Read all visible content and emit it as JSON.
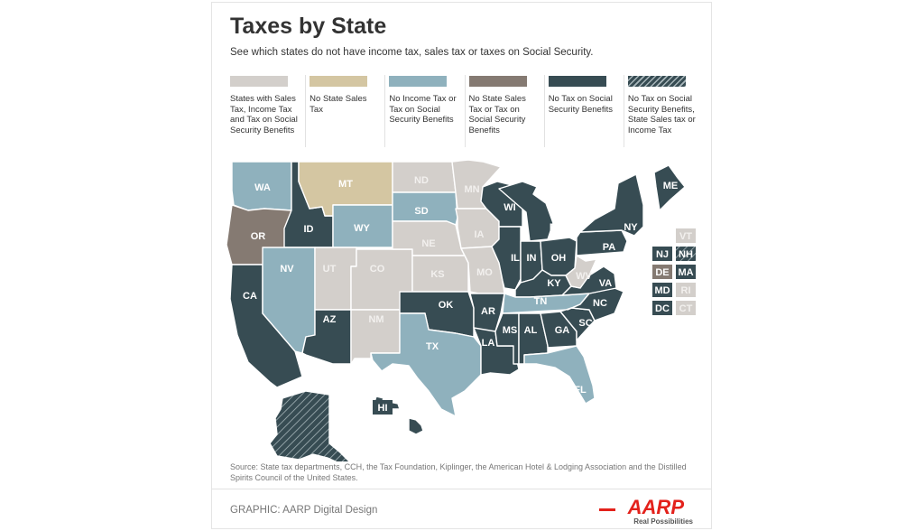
{
  "header": {
    "title": "Taxes by State",
    "subtitle": "See which states do not have income tax, sales tax or taxes on Social Security."
  },
  "colors": {
    "all_taxes": "#d3cfcb",
    "no_sales": "#d4c6a2",
    "no_income": "#8fb1bd",
    "no_sales_or_ss": "#857a72",
    "no_ss": "#374c53",
    "hatched": "#374c53",
    "aarp_red": "#e3211b"
  },
  "legend": [
    {
      "key": "all_taxes",
      "label": "States with Sales Tax, Income Tax and Tax on Social Security Benefits"
    },
    {
      "key": "no_sales",
      "label": "No State Sales Tax"
    },
    {
      "key": "no_income",
      "label": "No Income Tax or Tax on Social Security Benefits"
    },
    {
      "key": "no_sales_or_ss",
      "label": "No State Sales Tax or Tax on Social Security Benefits"
    },
    {
      "key": "no_ss",
      "label": "No Tax on Social Security Benefits"
    },
    {
      "key": "hatched",
      "label": "No Tax on Social Security Benefits, State Sales tax or Income Tax"
    }
  ],
  "states": {
    "WA": "no_income",
    "OR": "no_sales_or_ss",
    "CA": "no_ss",
    "ID": "no_ss",
    "NV": "no_income",
    "MT": "no_sales",
    "WY": "no_income",
    "UT": "all_taxes",
    "AZ": "no_ss",
    "CO": "all_taxes",
    "NM": "all_taxes",
    "ND": "all_taxes",
    "SD": "no_income",
    "NE": "all_taxes",
    "KS": "all_taxes",
    "OK": "no_ss",
    "TX": "no_income",
    "MN": "all_taxes",
    "IA": "all_taxes",
    "MO": "all_taxes",
    "AR": "no_ss",
    "LA": "no_ss",
    "WI": "no_ss",
    "IL": "no_ss",
    "MI": "no_ss",
    "IN": "no_ss",
    "OH": "no_ss",
    "KY": "no_ss",
    "TN": "no_income",
    "MS": "no_ss",
    "AL": "no_ss",
    "GA": "no_ss",
    "FL": "no_income",
    "SC": "no_ss",
    "NC": "no_ss",
    "VA": "no_ss",
    "WV": "all_taxes",
    "PA": "no_ss",
    "NY": "no_ss",
    "ME": "no_ss",
    "AK": "hatched",
    "HI": "no_ss"
  },
  "small_states": [
    {
      "code": "VT",
      "key": "all_taxes"
    },
    {
      "code": "NJ",
      "key": "no_ss"
    },
    {
      "code": "NH",
      "key": "hatched"
    },
    {
      "code": "DE",
      "key": "no_sales_or_ss"
    },
    {
      "code": "MA",
      "key": "no_ss"
    },
    {
      "code": "MD",
      "key": "no_ss"
    },
    {
      "code": "RI",
      "key": "all_taxes"
    },
    {
      "code": "DC",
      "key": "no_ss"
    },
    {
      "code": "CT",
      "key": "all_taxes"
    }
  ],
  "source": "Source:  State tax departments, CCH, the Tax Foundation, Kiplinger, the American Hotel & Lodging Association and the Distilled Spirits Council of the United States.",
  "credit": "GRAPHIC: AARP Digital Design",
  "logo": {
    "name": "AARP",
    "tagline": "Real Possibilities"
  }
}
